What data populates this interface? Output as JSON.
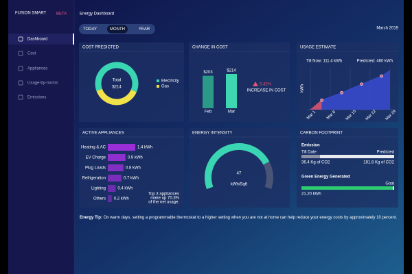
{
  "sidebar": {
    "brand": "FUSION SMART",
    "badge": "BETA",
    "nav": [
      "Dashboard",
      "Cost",
      "Appliances",
      "Usage-by-rooms",
      "Emissions"
    ]
  },
  "header": {
    "title": "Energy Dashboard",
    "tabs": [
      "TODAY",
      "MONTH",
      "YEAR"
    ],
    "period": "March 2019"
  },
  "chart_data": [
    {
      "type": "pie",
      "title": "COST PREDICTED",
      "categories": [
        "Electricity",
        "Gas"
      ],
      "values": [
        62,
        38
      ],
      "colors": [
        "#3ad6b4",
        "#f2e24a"
      ],
      "center_label": "Total",
      "center_value": "$214"
    },
    {
      "type": "bar",
      "title": "CHANGE IN COST",
      "categories": [
        "Feb",
        "Mar"
      ],
      "values": [
        203,
        214
      ],
      "value_labels": [
        "$203",
        "$214"
      ],
      "colors": [
        "#2b9a88",
        "#3fd6b2"
      ],
      "change": "5.42%",
      "change_label": "INCREASE IN COST",
      "change_color": "#e2566f"
    },
    {
      "type": "line",
      "title": "USAGE ESTIMATE",
      "y_label": "kWh",
      "annotations": [
        "Till Now: 111.4 kWh",
        "Predicted: 460 kWh"
      ],
      "xlim": [
        0,
        30
      ],
      "ylim": [
        0,
        500
      ],
      "xticks": [
        {
          "value": 1,
          "label": "Mar 1"
        },
        {
          "value": 8,
          "label": "Mar 8"
        },
        {
          "value": 15,
          "label": "Mar 15"
        },
        {
          "value": 22,
          "label": "Mar 22"
        },
        {
          "value": 29,
          "label": "Mar 29"
        }
      ],
      "grid": true,
      "series": [
        {
          "color": "#e2566f",
          "x": [
            1,
            3,
            5
          ],
          "values": [
            0,
            55,
            111.4
          ]
        },
        {
          "color": "#3a4bd0",
          "x": [
            5,
            12,
            19,
            26,
            29
          ],
          "values": [
            111.4,
            200,
            300,
            395,
            460
          ]
        }
      ]
    },
    {
      "type": "hbar",
      "title": "ACTIVE APPLIANCES",
      "categories": [
        "Heating & AC",
        "EV Charge",
        "Plug Loads",
        "Refrigeration",
        "Lighting",
        "Others"
      ],
      "values": [
        1.4,
        0.9,
        0.8,
        0.7,
        0.4,
        0.2
      ],
      "value_labels": [
        "1.4 kWh",
        "0.9 kWh",
        "0.8 kWh",
        "0.7 kWh",
        "0.4 kWh",
        "0.2 kWh"
      ],
      "color": "#9a2fd8",
      "note": [
        "Top 3 appliances",
        "make up 70.3%",
        "of the net usage."
      ]
    },
    {
      "type": "gauge",
      "title": "ENERGY INTENSITY",
      "value": 47,
      "unit": "kWh/Sqft",
      "ylim": [
        0,
        60
      ],
      "color": "#3ad6b4"
    },
    {
      "type": "progress",
      "title": "CARBON FOOTPRINT",
      "sections": [
        {
          "title": "Emission",
          "left_caption": "Till Date",
          "right_caption": "Predicted",
          "value": {
            "value": 36.4,
            "label": "36.4 Kg of CO2"
          },
          "total": {
            "value": 181.8,
            "label": "181.8 Kg of CO2"
          },
          "color": "#8d91a6"
        },
        {
          "title": "Green Energy Generated",
          "right_caption": "Goal",
          "value": "21.20 kWh",
          "color": "#2ecc71"
        }
      ]
    }
  ],
  "tip": {
    "label": "Energy Tip:",
    "text": "On warm days, setting a programmable thermostat to a higher setting when you are not at home can help reduce your energy costs by approximately 10 percent."
  }
}
